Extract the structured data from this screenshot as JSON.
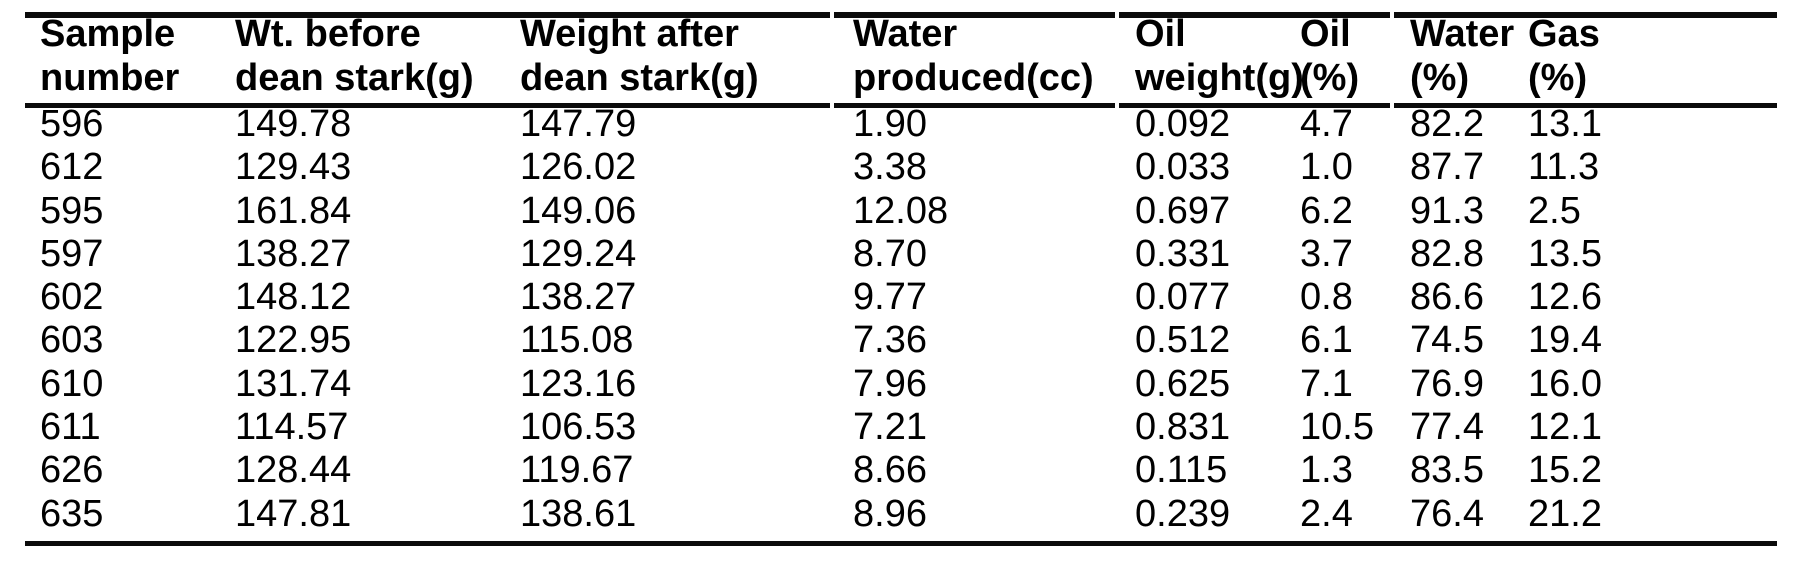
{
  "table": {
    "title": "Dean Stark sample analysis table",
    "headers": [
      {
        "label": "Sample number",
        "line1": "Sample",
        "line2": "number"
      },
      {
        "label": "Wt. before dean stark(g)",
        "line1": "Wt. before",
        "line2": "dean stark(g)"
      },
      {
        "label": "Weight after dean stark(g)",
        "line1": "Weight after",
        "line2": "dean stark(g)"
      },
      {
        "label": "Water produced(cc)",
        "line1": "Water",
        "line2": "produced(cc)"
      },
      {
        "label": "Oil weight(g)",
        "line1": "Oil",
        "line2": "weight(g)"
      },
      {
        "label": "Oil (%)",
        "line1": "Oil",
        "line2": "(%)"
      },
      {
        "label": "Water (%)",
        "line1": "Water",
        "line2": "(%)"
      },
      {
        "label": "Gas (%)",
        "line1": "Gas",
        "line2": "(%)"
      }
    ],
    "rows": [
      [
        "596",
        "149.78",
        "147.79",
        "1.90",
        "0.092",
        "4.7",
        "82.2",
        "13.1"
      ],
      [
        "612",
        "129.43",
        "126.02",
        "3.38",
        "0.033",
        "1.0",
        "87.7",
        "11.3"
      ],
      [
        "595",
        "161.84",
        "149.06",
        "12.08",
        "0.697",
        "6.2",
        "91.3",
        "2.5"
      ],
      [
        "597",
        "138.27",
        "129.24",
        "8.70",
        "0.331",
        "3.7",
        "82.8",
        "13.5"
      ],
      [
        "602",
        "148.12",
        "138.27",
        "9.77",
        "0.077",
        "0.8",
        "86.6",
        "12.6"
      ],
      [
        "603",
        "122.95",
        "115.08",
        "7.36",
        "0.512",
        "6.1",
        "74.5",
        "19.4"
      ],
      [
        "610",
        "131.74",
        "123.16",
        "7.96",
        "0.625",
        "7.1",
        "76.9",
        "16.0"
      ],
      [
        "611",
        "114.57",
        "106.53",
        "7.21",
        "0.831",
        "10.5",
        "77.4",
        "12.1"
      ],
      [
        "626",
        "128.44",
        "119.67",
        "8.66",
        "0.115",
        "1.3",
        "83.5",
        "15.2"
      ],
      [
        "635",
        "147.81",
        "138.61",
        "8.96",
        "0.239",
        "2.4",
        "76.4",
        "21.2"
      ]
    ]
  },
  "chart_data": {
    "type": "table",
    "columns": [
      "Sample number",
      "Wt. before dean stark(g)",
      "Weight after dean stark(g)",
      "Water produced(cc)",
      "Oil weight(g)",
      "Oil (%)",
      "Water (%)",
      "Gas (%)"
    ],
    "rows": [
      [
        596,
        149.78,
        147.79,
        1.9,
        0.092,
        4.7,
        82.2,
        13.1
      ],
      [
        612,
        129.43,
        126.02,
        3.38,
        0.033,
        1.0,
        87.7,
        11.3
      ],
      [
        595,
        161.84,
        149.06,
        12.08,
        0.697,
        6.2,
        91.3,
        2.5
      ],
      [
        597,
        138.27,
        129.24,
        8.7,
        0.331,
        3.7,
        82.8,
        13.5
      ],
      [
        602,
        148.12,
        138.27,
        9.77,
        0.077,
        0.8,
        86.6,
        12.6
      ],
      [
        603,
        122.95,
        115.08,
        7.36,
        0.512,
        6.1,
        74.5,
        19.4
      ],
      [
        610,
        131.74,
        123.16,
        7.96,
        0.625,
        7.1,
        76.9,
        16.0
      ],
      [
        611,
        114.57,
        106.53,
        7.21,
        0.831,
        10.5,
        77.4,
        12.1
      ],
      [
        626,
        128.44,
        119.67,
        8.66,
        0.115,
        1.3,
        83.5,
        15.2
      ],
      [
        635,
        147.81,
        138.61,
        8.96,
        0.239,
        2.4,
        76.4,
        21.2
      ]
    ]
  },
  "colors": {
    "background": "#ffffff",
    "text": "#000000",
    "rule": "#0b0b0b"
  }
}
